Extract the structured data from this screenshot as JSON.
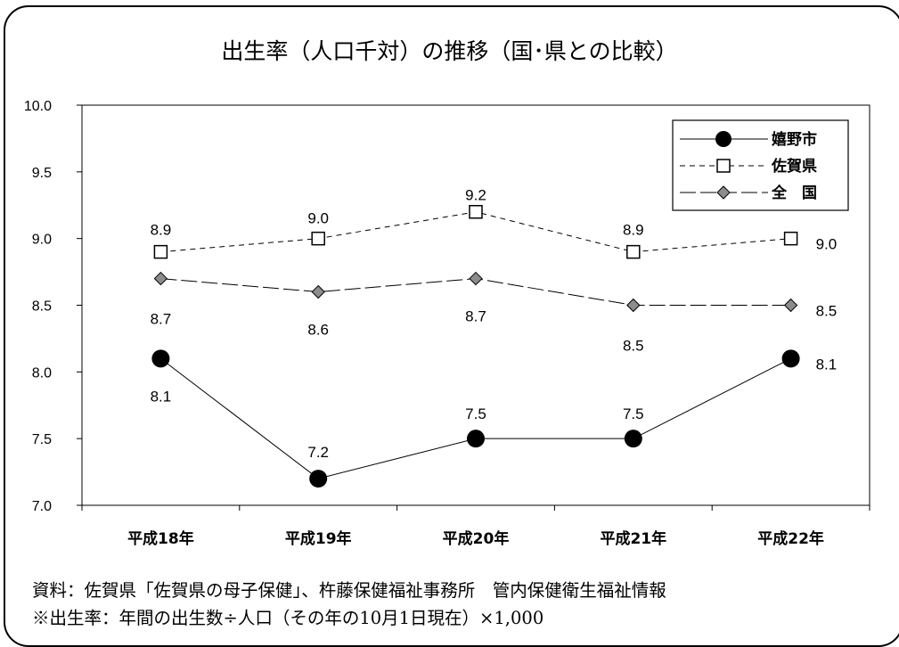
{
  "chart_data": {
    "type": "line",
    "title": "出生率（人口千対）の推移（国･県との比較）",
    "categories": [
      "平成18年",
      "平成19年",
      "平成20年",
      "平成21年",
      "平成22年"
    ],
    "ylim": [
      7.0,
      10.0
    ],
    "yticks": [
      "10.0",
      "9.5",
      "9.0",
      "8.5",
      "8.0",
      "7.5",
      "7.0"
    ],
    "grid": false,
    "legend_position": "top-right",
    "series": [
      {
        "name": "嬉野市",
        "values": [
          8.1,
          7.2,
          7.5,
          7.5,
          8.1
        ],
        "labels": [
          "8.1",
          "7.2",
          "7.5",
          "7.5",
          "8.1"
        ],
        "marker": "filled-circle",
        "line": "solid",
        "color": "#000000"
      },
      {
        "name": "佐賀県",
        "values": [
          8.9,
          9.0,
          9.2,
          8.9,
          9.0
        ],
        "labels": [
          "8.9",
          "9.0",
          "9.2",
          "8.9",
          "9.0"
        ],
        "marker": "hollow-square",
        "line": "dashed",
        "color": "#000000"
      },
      {
        "name": "全　国",
        "values": [
          8.7,
          8.6,
          8.7,
          8.5,
          8.5
        ],
        "labels": [
          "8.7",
          "8.6",
          "8.7",
          "8.5",
          "8.5"
        ],
        "marker": "gray-diamond",
        "line": "long-dash",
        "color": "#808080"
      }
    ]
  },
  "notes": {
    "source": "資料：佐賀県「佐賀県の母子保健」、杵藤保健福祉事務所　管内保健衛生福祉情報",
    "definition": "※出生率：年間の出生数÷人口（その年の10月1日現在）×1,000"
  }
}
